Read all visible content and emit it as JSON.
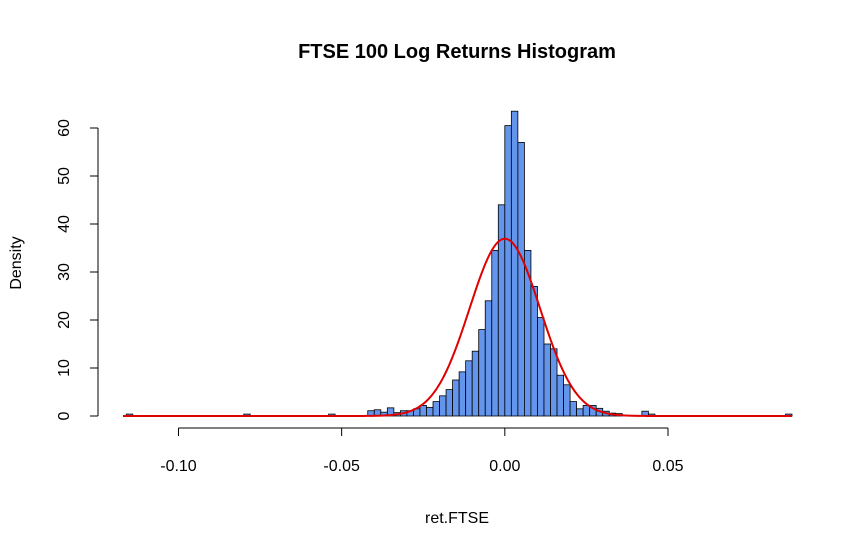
{
  "chart_data": {
    "type": "bar",
    "title": "FTSE 100 Log Returns Histogram",
    "xlabel": "ret.FTSE",
    "ylabel": "Density",
    "xlim": [
      -0.117,
      0.088
    ],
    "ylim": [
      0,
      65
    ],
    "x_ticks": [
      -0.1,
      -0.05,
      0.0,
      0.05
    ],
    "x_tick_labels": [
      "-0.10",
      "-0.05",
      "0.00",
      "0.05"
    ],
    "y_ticks": [
      0,
      10,
      20,
      30,
      40,
      50,
      60
    ],
    "y_tick_labels": [
      "0",
      "10",
      "20",
      "30",
      "40",
      "50",
      "60"
    ],
    "bin_width": 0.002,
    "bins": [
      {
        "x0": -0.116,
        "density": 0.4
      },
      {
        "x0": -0.08,
        "density": 0.4
      },
      {
        "x0": -0.054,
        "density": 0.4
      },
      {
        "x0": -0.042,
        "density": 1.1
      },
      {
        "x0": -0.04,
        "density": 1.3
      },
      {
        "x0": -0.038,
        "density": 0.8
      },
      {
        "x0": -0.036,
        "density": 1.7
      },
      {
        "x0": -0.034,
        "density": 0.7
      },
      {
        "x0": -0.032,
        "density": 1.1
      },
      {
        "x0": -0.03,
        "density": 1.1
      },
      {
        "x0": -0.028,
        "density": 1.5
      },
      {
        "x0": -0.026,
        "density": 2.2
      },
      {
        "x0": -0.024,
        "density": 1.8
      },
      {
        "x0": -0.022,
        "density": 3.0
      },
      {
        "x0": -0.02,
        "density": 4.2
      },
      {
        "x0": -0.018,
        "density": 5.5
      },
      {
        "x0": -0.016,
        "density": 7.5
      },
      {
        "x0": -0.014,
        "density": 9.2
      },
      {
        "x0": -0.012,
        "density": 11.5
      },
      {
        "x0": -0.01,
        "density": 13.5
      },
      {
        "x0": -0.008,
        "density": 18.0
      },
      {
        "x0": -0.006,
        "density": 24.0
      },
      {
        "x0": -0.004,
        "density": 34.5
      },
      {
        "x0": -0.002,
        "density": 44.0
      },
      {
        "x0": 0.0,
        "density": 60.5
      },
      {
        "x0": 0.002,
        "density": 63.5
      },
      {
        "x0": 0.004,
        "density": 57.0
      },
      {
        "x0": 0.006,
        "density": 34.5
      },
      {
        "x0": 0.008,
        "density": 27.0
      },
      {
        "x0": 0.01,
        "density": 20.5
      },
      {
        "x0": 0.012,
        "density": 15.0
      },
      {
        "x0": 0.014,
        "density": 14.0
      },
      {
        "x0": 0.016,
        "density": 8.5
      },
      {
        "x0": 0.018,
        "density": 6.5
      },
      {
        "x0": 0.02,
        "density": 3.0
      },
      {
        "x0": 0.022,
        "density": 1.5
      },
      {
        "x0": 0.024,
        "density": 2.2
      },
      {
        "x0": 0.026,
        "density": 2.2
      },
      {
        "x0": 0.028,
        "density": 1.6
      },
      {
        "x0": 0.03,
        "density": 1.0
      },
      {
        "x0": 0.032,
        "density": 0.6
      },
      {
        "x0": 0.034,
        "density": 0.5
      },
      {
        "x0": 0.042,
        "density": 1.0
      },
      {
        "x0": 0.044,
        "density": 0.4
      },
      {
        "x0": 0.086,
        "density": 0.4
      }
    ],
    "normal_curve": {
      "mean": 0.0,
      "sd": 0.0108,
      "color": "#e00000"
    },
    "bar_color": "#6495ed",
    "grid": false,
    "legend": "none"
  }
}
